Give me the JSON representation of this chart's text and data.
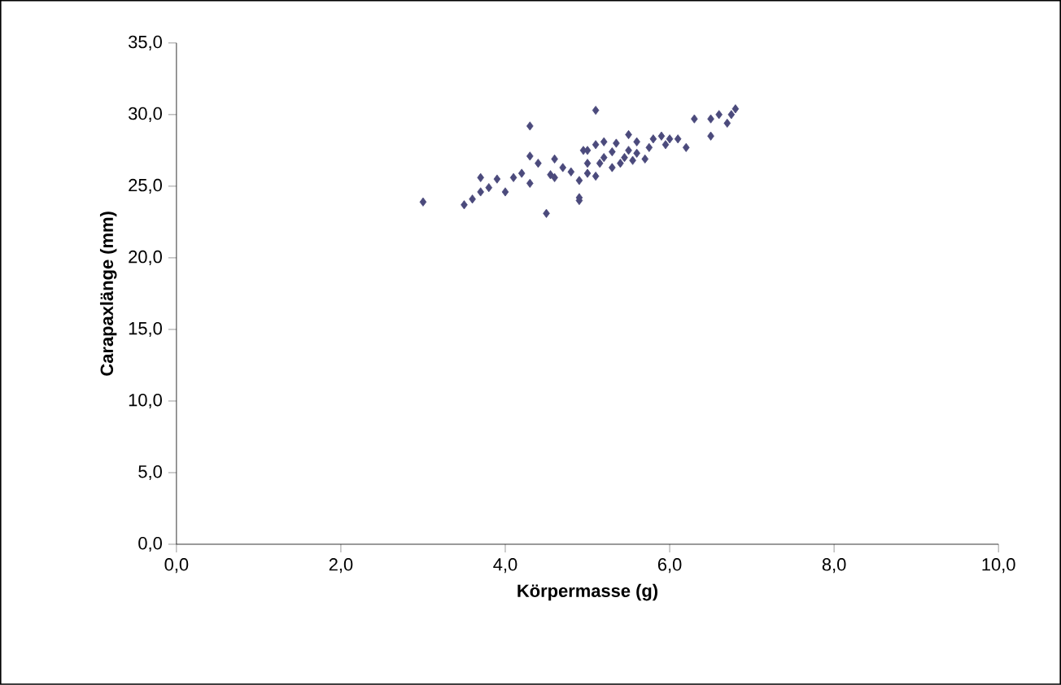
{
  "chart_data": {
    "type": "scatter",
    "xlabel": "Körpermasse (g)",
    "ylabel": "Carapaxlänge (mm)",
    "color": "#4b4a7c",
    "marker": "diamond",
    "grid": false,
    "xlim": [
      0,
      10
    ],
    "xticks": [
      {
        "value": 0,
        "label": "0,0"
      },
      {
        "value": 2,
        "label": "2,0"
      },
      {
        "value": 4,
        "label": "4,0"
      },
      {
        "value": 6,
        "label": "6,0"
      },
      {
        "value": 8,
        "label": "8,0"
      },
      {
        "value": 10,
        "label": "10,0"
      }
    ],
    "ylim": [
      0,
      35
    ],
    "yticks": [
      {
        "value": 0,
        "label": "0,0"
      },
      {
        "value": 5,
        "label": "5,0"
      },
      {
        "value": 10,
        "label": "10,0"
      },
      {
        "value": 15,
        "label": "15,0"
      },
      {
        "value": 20,
        "label": "20,0"
      },
      {
        "value": 25,
        "label": "25,0"
      },
      {
        "value": 30,
        "label": "30,0"
      },
      {
        "value": 35,
        "label": "35,0"
      }
    ],
    "x": [
      3.0,
      4.3,
      3.5,
      3.6,
      3.7,
      3.7,
      3.8,
      3.9,
      4.0,
      4.1,
      4.2,
      4.3,
      4.3,
      4.4,
      4.5,
      4.55,
      4.6,
      4.7,
      4.8,
      4.9,
      4.9,
      4.95,
      5.1,
      5.0,
      5.1,
      5.2,
      5.15,
      5.3,
      5.4,
      5.5,
      5.5,
      5.6,
      5.7,
      5.8,
      5.9,
      5.95,
      6.1,
      6.2,
      6.3,
      6.5,
      6.5,
      6.6,
      6.7,
      6.8,
      4.9,
      5.1,
      5.3,
      5.0,
      5.2,
      5.45,
      5.6,
      5.0,
      5.75,
      6.0,
      4.6,
      5.35,
      5.55,
      6.75
    ],
    "values": [
      23.9,
      29.2,
      23.7,
      24.1,
      24.6,
      25.6,
      24.9,
      25.5,
      24.6,
      25.6,
      25.9,
      25.2,
      27.1,
      26.6,
      23.1,
      25.8,
      26.9,
      26.3,
      26.0,
      25.4,
      24.0,
      27.5,
      30.3,
      27.5,
      27.9,
      28.1,
      26.6,
      27.4,
      26.6,
      28.6,
      27.5,
      28.1,
      26.9,
      28.3,
      28.5,
      27.9,
      28.3,
      27.7,
      29.7,
      29.7,
      28.5,
      30.0,
      29.4,
      30.4,
      24.2,
      25.7,
      26.3,
      26.6,
      27.0,
      27.0,
      27.3,
      25.9,
      27.7,
      28.3,
      25.6,
      28.0,
      26.8,
      30.0
    ]
  }
}
